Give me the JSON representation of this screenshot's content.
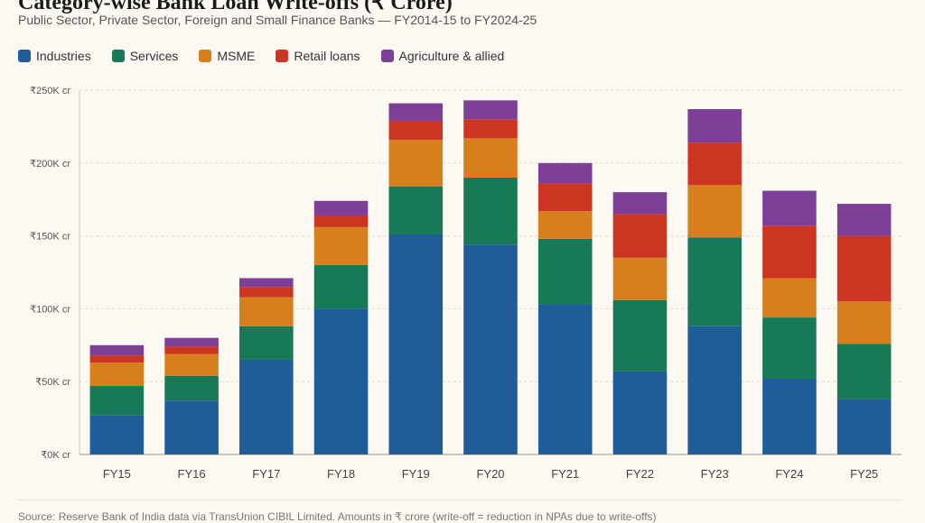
{
  "title": "Category-wise Bank Loan Write-offs (₹ Crore)",
  "subtitle": "Public Sector, Private Sector, Foreign and Small Finance Banks — FY2014-15 to FY2024-25",
  "source": "Source: Reserve Bank of India data via TransUnion CIBIL Limited. Amounts in ₹ crore (write-off = reduction in NPAs due to write-offs)",
  "chart_data": {
    "type": "bar",
    "stacked": true,
    "categories": [
      "FY15",
      "FY16",
      "FY17",
      "FY18",
      "FY19",
      "FY20",
      "FY21",
      "FY22",
      "FY23",
      "FY24",
      "FY25"
    ],
    "series": [
      {
        "name": "Industries",
        "color": "#1f5c99",
        "values": [
          27000,
          37000,
          65000,
          100000,
          151000,
          144000,
          103000,
          57000,
          88000,
          52000,
          38000
        ]
      },
      {
        "name": "Services",
        "color": "#167a57",
        "values": [
          20000,
          17000,
          23000,
          30000,
          33000,
          46000,
          45000,
          49000,
          61000,
          42000,
          38000
        ]
      },
      {
        "name": "MSME",
        "color": "#d77e1d",
        "values": [
          16000,
          15000,
          20000,
          26000,
          32000,
          27000,
          19000,
          29000,
          36000,
          27000,
          29000
        ]
      },
      {
        "name": "Retail loans",
        "color": "#cd3523",
        "values": [
          5000,
          5000,
          7000,
          8000,
          13000,
          13000,
          19000,
          30000,
          29000,
          36000,
          45000
        ]
      },
      {
        "name": "Agriculture & allied",
        "color": "#7d3f98",
        "values": [
          7000,
          6000,
          6000,
          10000,
          12000,
          13000,
          14000,
          15000,
          23000,
          24000,
          22000
        ]
      }
    ],
    "ylim": [
      0,
      250000
    ],
    "yticks": [
      0,
      50000,
      100000,
      150000,
      200000,
      250000
    ],
    "ytick_labels": [
      "₹0K cr",
      "₹50K cr",
      "₹100K cr",
      "₹150K cr",
      "₹200K cr",
      "₹250K cr"
    ],
    "grid": true,
    "legend": "top-left"
  }
}
